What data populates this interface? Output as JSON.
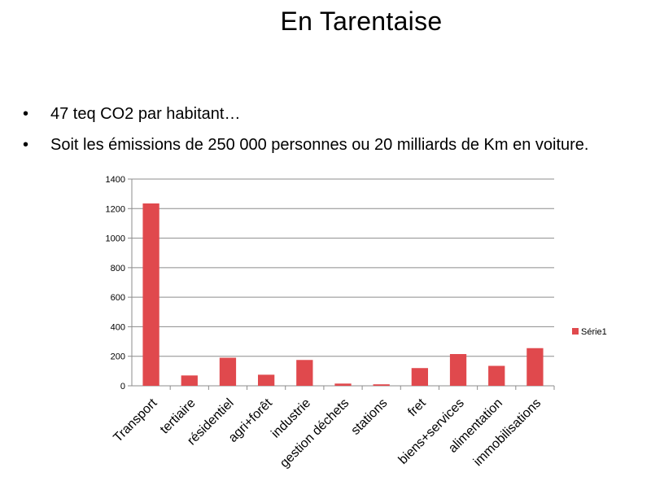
{
  "slide": {
    "title": "En Tarentaise",
    "bullets": [
      "47 teq CO2 par habitant…",
      "Soit les émissions de 250 000 personnes ou 20 milliards de Km en voiture."
    ]
  },
  "chart_data": {
    "type": "bar",
    "categories": [
      "Transport",
      "tertiaire",
      "résidentiel",
      "agri+forêt",
      "industrie",
      "gestion déchets",
      "stations",
      "fret",
      "biens+services",
      "alimentation",
      "immobilisations"
    ],
    "series": [
      {
        "name": "Série1",
        "values": [
          1235,
          70,
          190,
          75,
          175,
          15,
          10,
          120,
          215,
          135,
          255
        ],
        "color": "#e0494d"
      }
    ],
    "ylim": [
      0,
      1400
    ],
    "yticks": [
      0,
      200,
      400,
      600,
      800,
      1000,
      1200,
      1400
    ],
    "grid": true,
    "legend": "right",
    "title": "",
    "xlabel": "",
    "ylabel": ""
  }
}
